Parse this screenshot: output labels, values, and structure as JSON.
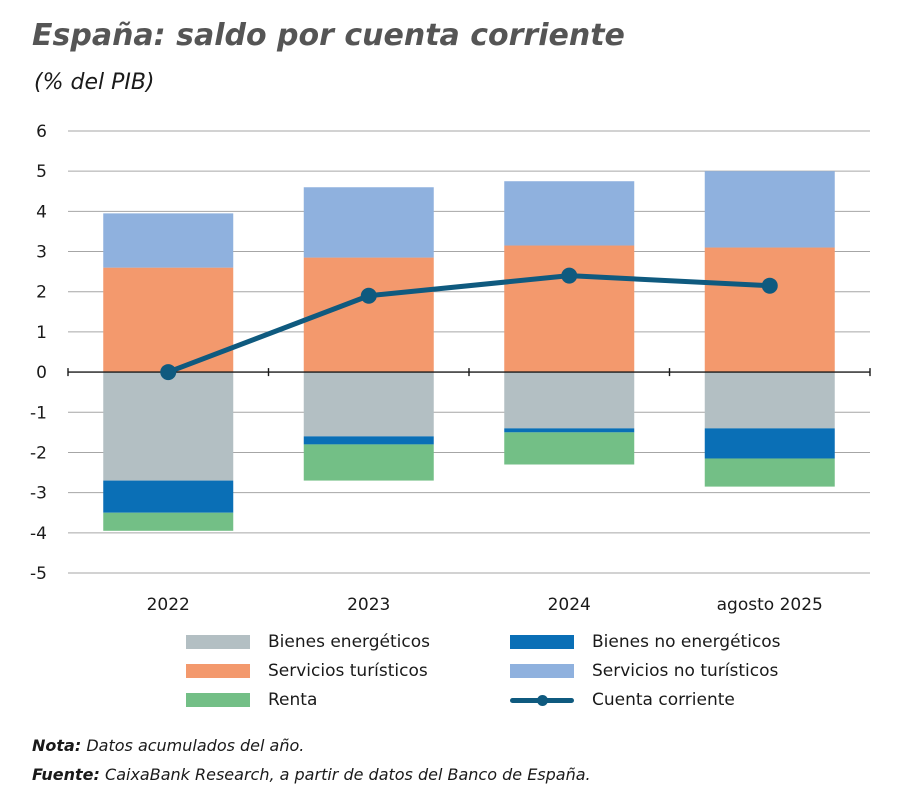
{
  "title": "España: saldo por cuenta corriente",
  "subtitle": "(% del PIB)",
  "note_label": "Nota:",
  "note_text": "Datos acumulados del año.",
  "source_label": "Fuente:",
  "source_text": "CaixaBank Research, a partir de datos del Banco de España.",
  "colors": {
    "bienes_energeticos": "#b3bfc3",
    "bienes_no_energeticos": "#0a6fb6",
    "servicios_turisticos": "#f3996d",
    "servicios_no_turisticos": "#8fb1de",
    "renta": "#73bf86",
    "cuenta_corriente": "#0f5a7f",
    "grid": "#a6a6a6"
  },
  "chart_data": {
    "type": "bar",
    "stacked": true,
    "categories": [
      "2022",
      "2023",
      "2024",
      "agosto 2025"
    ],
    "ylim": [
      -5,
      6
    ],
    "yticks": [
      "6",
      "5",
      "4",
      "3",
      "2",
      "1",
      "0",
      "-1",
      "-2",
      "-3",
      "-4",
      "-5"
    ],
    "grid": true,
    "series": [
      {
        "name": "Bienes energéticos",
        "key": "bienes_energeticos",
        "values": [
          -2.7,
          -1.6,
          -1.4,
          -1.4
        ]
      },
      {
        "name": "Bienes no energéticos",
        "key": "bienes_no_energeticos",
        "values": [
          -0.8,
          -0.2,
          -0.1,
          -0.75
        ]
      },
      {
        "name": "Renta",
        "key": "renta",
        "values": [
          -0.45,
          -0.9,
          -0.8,
          -0.7
        ]
      },
      {
        "name": "Servicios turísticos",
        "key": "servicios_turisticos",
        "values": [
          2.6,
          2.85,
          3.15,
          3.1
        ]
      },
      {
        "name": "Servicios no turísticos",
        "key": "servicios_no_turisticos",
        "values": [
          1.35,
          1.75,
          1.6,
          1.9
        ]
      }
    ],
    "line": {
      "name": "Cuenta corriente",
      "key": "cuenta_corriente",
      "values": [
        0.0,
        1.9,
        2.4,
        2.15
      ]
    },
    "legend": [
      {
        "name": "Bienes energéticos",
        "key": "bienes_energeticos",
        "kind": "bar"
      },
      {
        "name": "Bienes no energéticos",
        "key": "bienes_no_energeticos",
        "kind": "bar"
      },
      {
        "name": "Servicios turísticos",
        "key": "servicios_turisticos",
        "kind": "bar"
      },
      {
        "name": "Servicios no turísticos",
        "key": "servicios_no_turisticos",
        "kind": "bar"
      },
      {
        "name": "Renta",
        "key": "renta",
        "kind": "bar"
      },
      {
        "name": "Cuenta corriente",
        "key": "cuenta_corriente",
        "kind": "line"
      }
    ]
  }
}
